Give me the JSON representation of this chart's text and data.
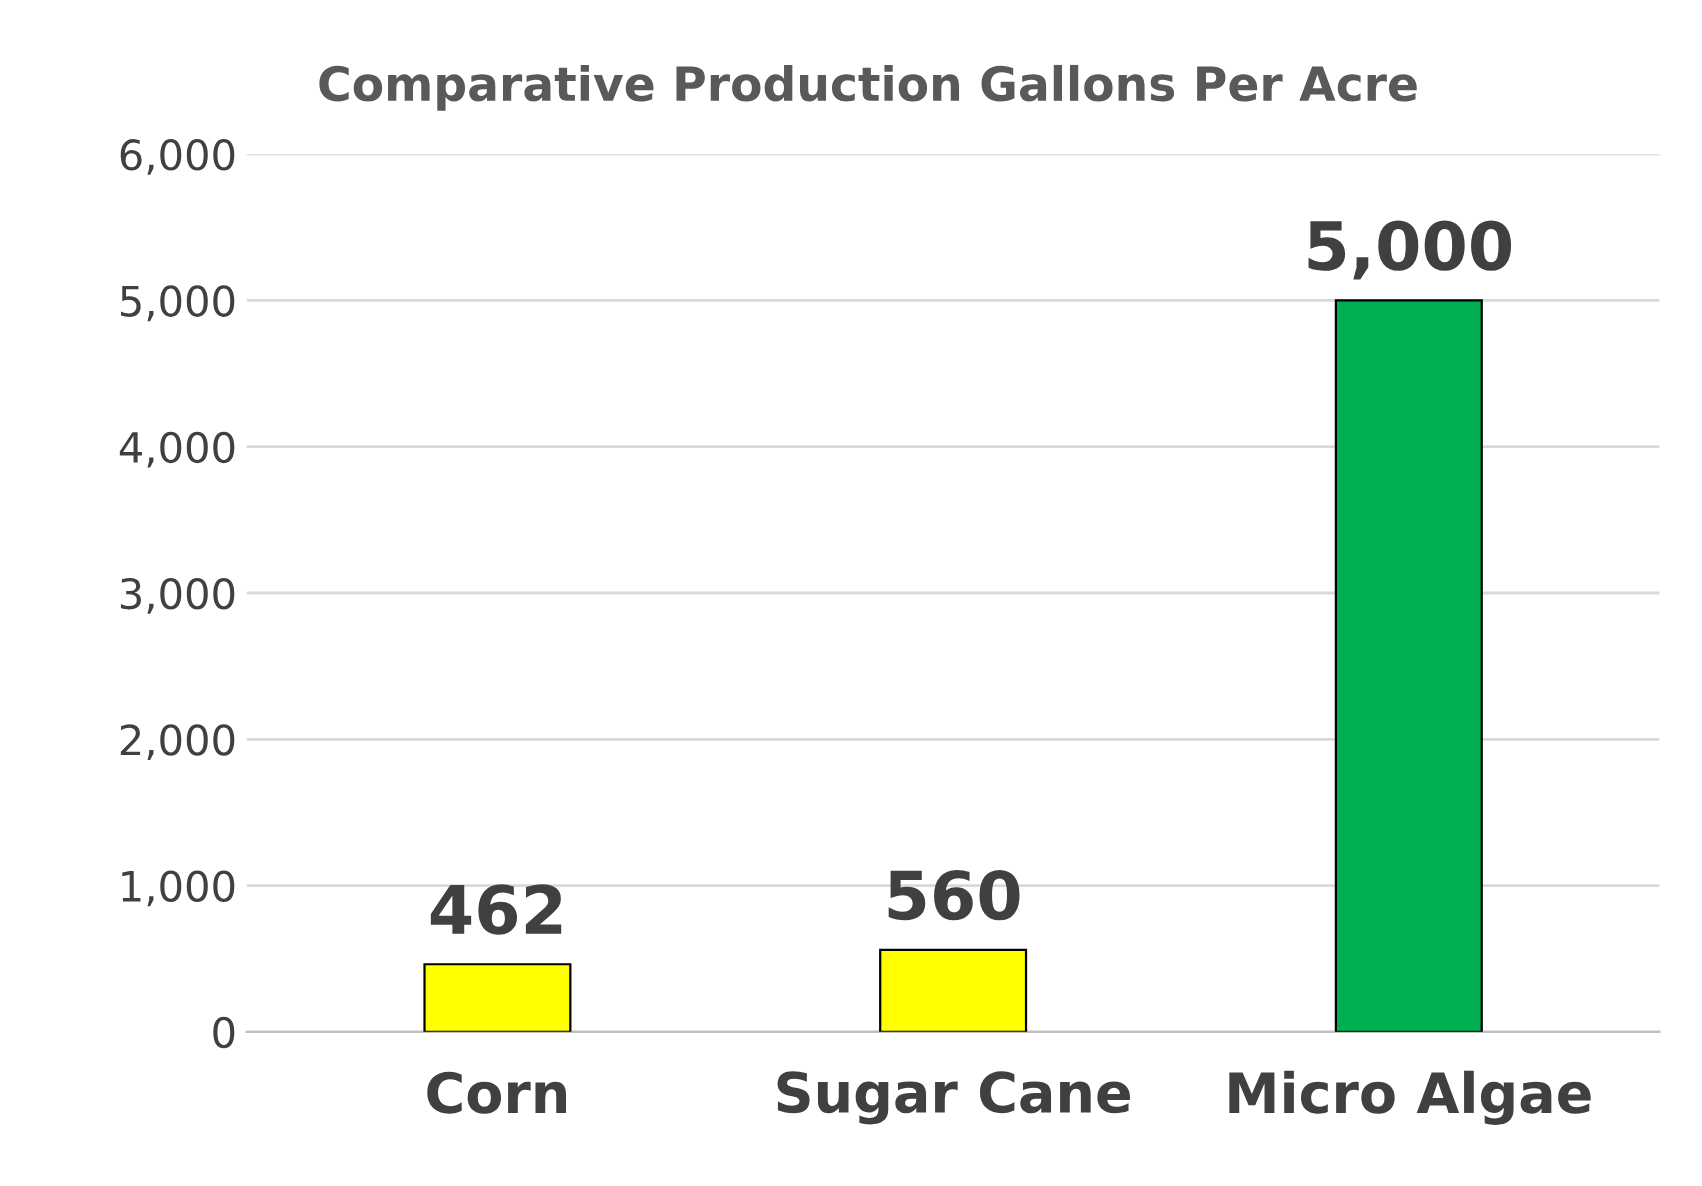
{
  "chart_data": {
    "type": "bar",
    "title": "Comparative Production Gallons Per Acre",
    "categories": [
      "Corn",
      "Sugar Cane",
      "Micro Algae"
    ],
    "values": [
      462,
      560,
      5000
    ],
    "colors": [
      "#ffff00",
      "#ffff00",
      "#00b050"
    ],
    "value_labels": [
      "462",
      "560",
      "5,000"
    ],
    "ylim": [
      0,
      6000
    ],
    "yticks": [
      {
        "value": 0,
        "label": "0"
      },
      {
        "value": 1000,
        "label": "1,000"
      },
      {
        "value": 2000,
        "label": "2,000"
      },
      {
        "value": 3000,
        "label": "3,000"
      },
      {
        "value": 4000,
        "label": "4,000"
      },
      {
        "value": 5000,
        "label": "5,000"
      },
      {
        "value": 6000,
        "label": "6,000"
      }
    ],
    "grid": "y",
    "legend": false
  }
}
